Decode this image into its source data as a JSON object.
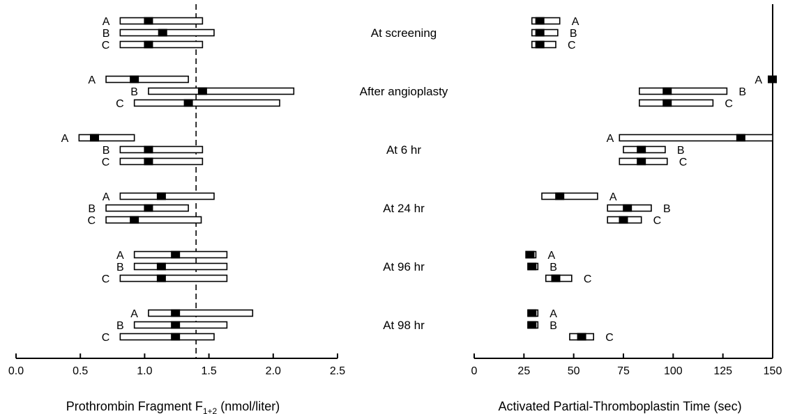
{
  "chart_data": [
    {
      "type": "range",
      "xlabel": "Prothrombin Fragment F",
      "xlabel_subscript": "1+2",
      "xlabel_unit": "(nmol/liter)",
      "xlim": [
        0,
        2.5
      ],
      "xticks": [
        0,
        0.5,
        1.0,
        1.5,
        2.0,
        2.5
      ],
      "xtick_labels": [
        "0.0",
        "0.5",
        "1.0",
        "1.5",
        "2.0",
        "2.5"
      ],
      "reference_line": 1.4,
      "groups": [
        {
          "time": "At screening",
          "rows": [
            {
              "label": "A",
              "low": 0.81,
              "high": 1.45,
              "median": 1.03
            },
            {
              "label": "B",
              "low": 0.81,
              "high": 1.54,
              "median": 1.14
            },
            {
              "label": "C",
              "low": 0.81,
              "high": 1.45,
              "median": 1.03
            }
          ]
        },
        {
          "time": "After angioplasty",
          "rows": [
            {
              "label": "A",
              "low": 0.7,
              "high": 1.34,
              "median": 0.92
            },
            {
              "label": "B",
              "low": 1.03,
              "high": 2.16,
              "median": 1.45
            },
            {
              "label": "C",
              "low": 0.92,
              "high": 2.05,
              "median": 1.34
            }
          ]
        },
        {
          "time": "At 6 hr",
          "rows": [
            {
              "label": "A",
              "low": 0.49,
              "high": 0.92,
              "median": 0.61
            },
            {
              "label": "B",
              "low": 0.81,
              "high": 1.45,
              "median": 1.03
            },
            {
              "label": "C",
              "low": 0.81,
              "high": 1.45,
              "median": 1.03
            }
          ]
        },
        {
          "time": "At 24 hr",
          "rows": [
            {
              "label": "A",
              "low": 0.81,
              "high": 1.54,
              "median": 1.13
            },
            {
              "label": "B",
              "low": 0.7,
              "high": 1.34,
              "median": 1.03
            },
            {
              "label": "C",
              "low": 0.7,
              "high": 1.44,
              "median": 0.92
            }
          ]
        },
        {
          "time": "At 96 hr",
          "rows": [
            {
              "label": "A",
              "low": 0.92,
              "high": 1.64,
              "median": 1.24
            },
            {
              "label": "B",
              "low": 0.92,
              "high": 1.64,
              "median": 1.13
            },
            {
              "label": "C",
              "low": 0.81,
              "high": 1.64,
              "median": 1.13
            }
          ]
        },
        {
          "time": "At 98 hr",
          "rows": [
            {
              "label": "A",
              "low": 1.03,
              "high": 1.84,
              "median": 1.24
            },
            {
              "label": "B",
              "low": 0.92,
              "high": 1.64,
              "median": 1.24
            },
            {
              "label": "C",
              "low": 0.81,
              "high": 1.54,
              "median": 1.24
            }
          ]
        }
      ]
    },
    {
      "type": "range",
      "xlabel": "Activated Partial-Thromboplastin Time (sec)",
      "xlim": [
        0,
        150
      ],
      "xticks": [
        0,
        25,
        50,
        75,
        100,
        125,
        150
      ],
      "xtick_labels": [
        "0",
        "25",
        "50",
        "75",
        "100",
        "125",
        "150"
      ],
      "groups": [
        {
          "time": "At screening",
          "rows": [
            {
              "label": "A",
              "low": 29,
              "high": 43,
              "median": 33
            },
            {
              "label": "B",
              "low": 29,
              "high": 42,
              "median": 33
            },
            {
              "label": "C",
              "low": 29,
              "high": 41,
              "median": 33
            }
          ]
        },
        {
          "time": "After angioplasty",
          "rows": [
            {
              "label": "A",
              "low": 150,
              "high": 150,
              "median": 150
            },
            {
              "label": "B",
              "low": 83,
              "high": 127,
              "median": 97
            },
            {
              "label": "C",
              "low": 83,
              "high": 120,
              "median": 97
            }
          ]
        },
        {
          "time": "At 6 hr",
          "rows": [
            {
              "label": "A",
              "low": 73,
              "high": 150,
              "median": 134
            },
            {
              "label": "B",
              "low": 75,
              "high": 96,
              "median": 84
            },
            {
              "label": "C",
              "low": 73,
              "high": 97,
              "median": 84
            }
          ]
        },
        {
          "time": "At 24 hr",
          "rows": [
            {
              "label": "A",
              "low": 34,
              "high": 62,
              "median": 43
            },
            {
              "label": "B",
              "low": 67,
              "high": 89,
              "median": 77
            },
            {
              "label": "C",
              "low": 67,
              "high": 84,
              "median": 75
            }
          ]
        },
        {
          "time": "At 96 hr",
          "rows": [
            {
              "label": "A",
              "low": 26,
              "high": 31,
              "median": 28
            },
            {
              "label": "B",
              "low": 27,
              "high": 32,
              "median": 29
            },
            {
              "label": "C",
              "low": 36,
              "high": 49,
              "median": 41
            }
          ]
        },
        {
          "time": "At 98 hr",
          "rows": [
            {
              "label": "A",
              "low": 27,
              "high": 32,
              "median": 29
            },
            {
              "label": "B",
              "low": 27,
              "high": 32,
              "median": 29
            },
            {
              "label": "C",
              "low": 48,
              "high": 60,
              "median": 54
            }
          ]
        }
      ]
    }
  ]
}
